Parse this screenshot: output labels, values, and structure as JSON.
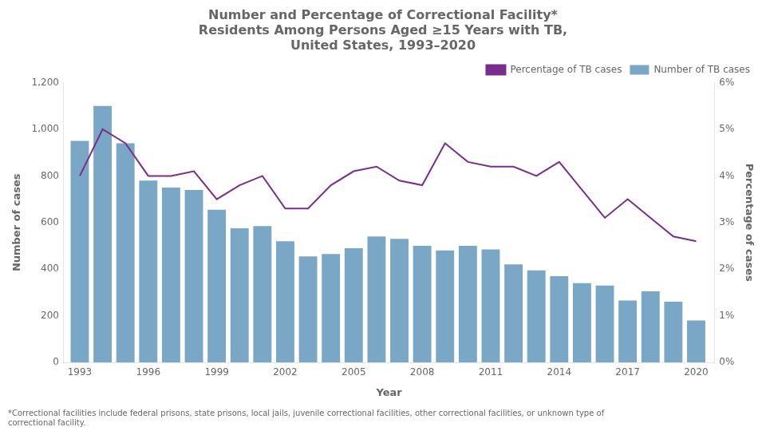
{
  "chart_data": {
    "type": "bar",
    "title": [
      "Number and Percentage of Correctional Facility*",
      "Residents Among Persons Aged ≥15 Years with TB,",
      "United States, 1993–2020"
    ],
    "annotations": [
      "*Correctional facilities include federal prisons, state prisons, local jails, juvenile correctional facilities, other correctional facilities, or unknown type of",
      "correctional facility."
    ],
    "xlabel": "Year",
    "ylabel": "Number of cases",
    "y2label": "Percentage of cases",
    "x": [
      1993,
      1994,
      1995,
      1996,
      1997,
      1998,
      1999,
      2000,
      2001,
      2002,
      2003,
      2004,
      2005,
      2006,
      2007,
      2008,
      2009,
      2010,
      2011,
      2012,
      2013,
      2014,
      2015,
      2016,
      2017,
      2018,
      2019,
      2020
    ],
    "series": [
      {
        "name": "Number of TB cases",
        "type": "bar",
        "color": "#7ba7c7",
        "values": [
          950,
          1100,
          940,
          780,
          750,
          740,
          655,
          575,
          585,
          520,
          455,
          465,
          490,
          540,
          530,
          500,
          480,
          500,
          485,
          420,
          395,
          370,
          340,
          330,
          265,
          305,
          260,
          180
        ]
      },
      {
        "name": "Percentage of TB cases",
        "type": "line",
        "axis": "y2",
        "color": "#7b2d8b",
        "values": [
          4.0,
          5.0,
          4.7,
          4.0,
          4.0,
          4.1,
          3.5,
          3.8,
          4.0,
          3.3,
          3.3,
          3.8,
          4.1,
          4.2,
          3.9,
          3.8,
          4.7,
          4.3,
          4.2,
          4.2,
          4.0,
          4.3,
          3.7,
          3.1,
          3.5,
          3.1,
          2.7,
          2.6
        ]
      }
    ],
    "xlim": [
      1992.3,
      2020.8
    ],
    "xticks": [
      1993,
      1996,
      1999,
      2002,
      2005,
      2008,
      2011,
      2014,
      2017,
      2020
    ],
    "ylim": [
      0,
      1200
    ],
    "yticks": [
      0,
      200,
      400,
      600,
      800,
      {
        "value": 1000,
        "label": "1,000"
      },
      {
        "value": 1200,
        "label": "1,200"
      }
    ],
    "y2lim": [
      0,
      6
    ],
    "y2ticks": [
      {
        "value": 0,
        "label": "0%"
      },
      {
        "value": 1,
        "label": "1%"
      },
      {
        "value": 2,
        "label": "2%"
      },
      {
        "value": 3,
        "label": "3%"
      },
      {
        "value": 4,
        "label": "4%"
      },
      {
        "value": 5,
        "label": "5%"
      },
      {
        "value": 6,
        "label": "6%"
      }
    ],
    "grid": false,
    "legend": "upper right"
  }
}
